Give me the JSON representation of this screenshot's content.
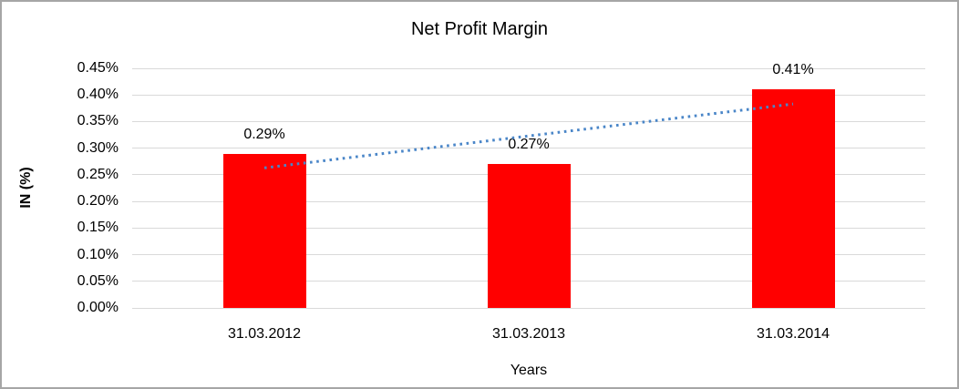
{
  "chart_data": {
    "type": "bar",
    "title": "Net Profit Margin",
    "xlabel": "Years",
    "ylabel": "IN (%)",
    "categories": [
      "31.03.2012",
      "31.03.2013",
      "31.03.2014"
    ],
    "values": [
      0.29,
      0.27,
      0.41
    ],
    "data_labels": [
      "0.29%",
      "0.27%",
      "0.41%"
    ],
    "y_tick_labels": [
      "0.45%",
      "0.40%",
      "0.35%",
      "0.30%",
      "0.25%",
      "0.20%",
      "0.15%",
      "0.10%",
      "0.05%",
      "0.00%"
    ],
    "ylim": [
      0,
      0.45
    ],
    "grid": true,
    "legend": "none",
    "bar_color": "#ff0000",
    "gridline_color": "#d9d9d9",
    "trendline": {
      "type": "linear",
      "style": "dotted",
      "color": "#4a86c8",
      "start_value": 0.263,
      "end_value": 0.383
    }
  }
}
